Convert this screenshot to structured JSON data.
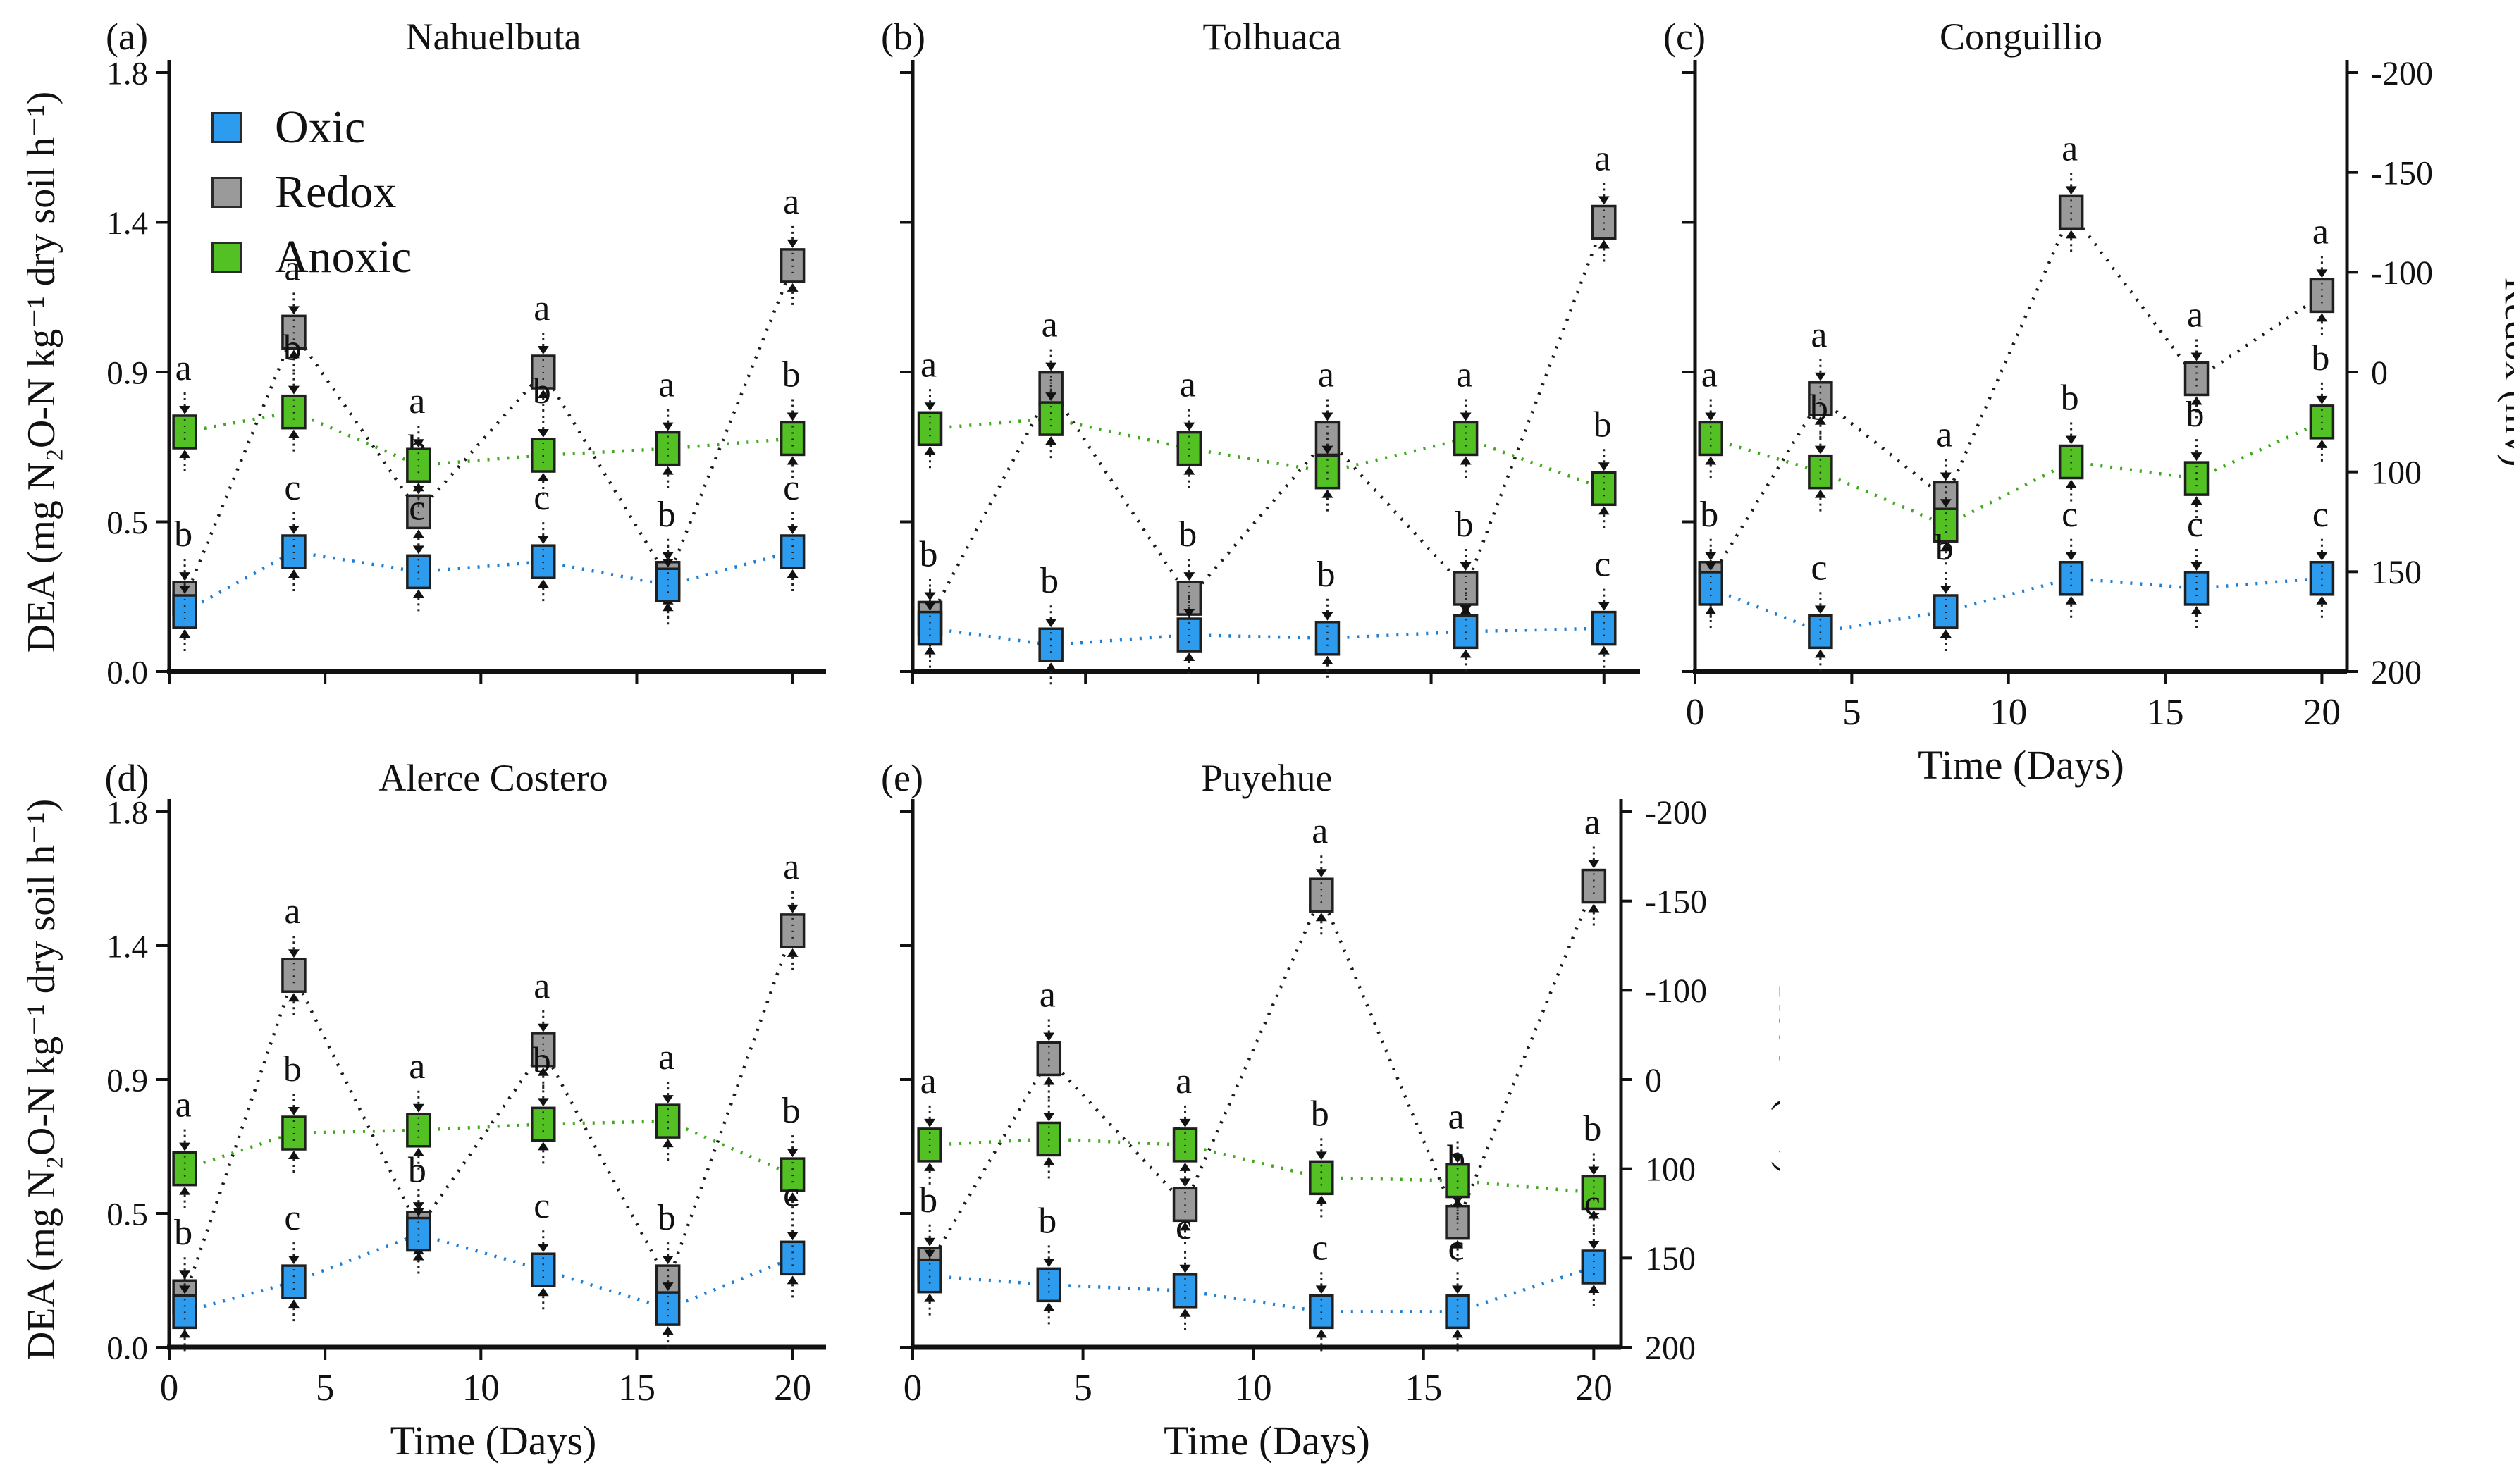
{
  "figure": {
    "background": "#ffffff"
  },
  "colors": {
    "oxic_fill": "#2D9CEE",
    "oxic_line": "#1C7FD6",
    "redox_fill": "#9A9A9A",
    "redox_line": "#1B1B1B",
    "anoxic_fill": "#53C123",
    "anoxic_line": "#3FA81C",
    "axis": "#111111",
    "text": "#111111",
    "box_border": "#1F1F1F"
  },
  "legend": {
    "items": [
      {
        "label": "Oxic",
        "color_key": "oxic_fill"
      },
      {
        "label": "Redox",
        "color_key": "redox_fill"
      },
      {
        "label": "Anoxic",
        "color_key": "anoxic_fill"
      }
    ]
  },
  "chart_data": {
    "type": "scatter",
    "x": [
      0.5,
      4,
      8,
      12,
      16,
      20
    ],
    "x_ticks": [
      "0",
      "5",
      "10",
      "15",
      "20"
    ],
    "x_tick_values": [
      0,
      5,
      10,
      15,
      20
    ],
    "xlabel": "Time (Days)",
    "dea_axis": {
      "label": "DEA (mg N₂O-N kg⁻¹ dry soil h⁻¹)",
      "tick_labels": [
        "1.8",
        "1.4",
        "0.9",
        "0.5",
        "0.0"
      ],
      "tick_values": [
        1.8,
        1.35,
        0.9,
        0.45,
        0
      ],
      "range": [
        0,
        1.8
      ]
    },
    "redox_axis": {
      "label": "Redox (mv)",
      "tick_labels": [
        "-200",
        "-150",
        "-100",
        "0",
        "100",
        "150",
        "200"
      ]
    },
    "series_names": [
      "Oxic",
      "Redox",
      "Anoxic"
    ],
    "panels": [
      {
        "id": "(a)",
        "title": "Nahuelbuta",
        "legend": true,
        "left_labels": true,
        "x_labels": false,
        "x_axis_title": false,
        "right_axis": false,
        "series": [
          {
            "name": "Redox",
            "values": [
              0.22,
              1.02,
              0.48,
              0.9,
              0.28,
              1.22
            ],
            "letters": [
              "b",
              "a",
              "b",
              "a",
              "b",
              "a"
            ]
          },
          {
            "name": "Anoxic",
            "values": [
              0.72,
              0.78,
              0.62,
              0.65,
              0.67,
              0.7
            ],
            "letters": [
              "a",
              "b",
              "a",
              "b",
              "a",
              "b"
            ]
          },
          {
            "name": "Oxic",
            "values": [
              0.18,
              0.36,
              0.3,
              0.33,
              0.26,
              0.36
            ],
            "letters": [
              "",
              "c",
              "c",
              "c",
              "",
              "c"
            ]
          }
        ]
      },
      {
        "id": "(b)",
        "title": "Tolhuaca",
        "legend": false,
        "left_labels": false,
        "x_labels": false,
        "x_axis_title": false,
        "right_axis": false,
        "series": [
          {
            "name": "Redox",
            "values": [
              0.16,
              0.85,
              0.22,
              0.7,
              0.25,
              1.35
            ],
            "letters": [
              "b",
              "a",
              "b",
              "a",
              "b",
              "a"
            ]
          },
          {
            "name": "Anoxic",
            "values": [
              0.73,
              0.76,
              0.67,
              0.6,
              0.7,
              0.55
            ],
            "letters": [
              "a",
              "",
              "a",
              "",
              "a",
              "b"
            ]
          },
          {
            "name": "Oxic",
            "values": [
              0.13,
              0.08,
              0.11,
              0.1,
              0.12,
              0.13
            ],
            "letters": [
              "",
              "b",
              "",
              "b",
              "",
              "c"
            ]
          }
        ]
      },
      {
        "id": "(c)",
        "title": "Conguillio",
        "legend": false,
        "left_labels": false,
        "x_labels": true,
        "x_axis_title": true,
        "right_axis": true,
        "series": [
          {
            "name": "Redox",
            "values": [
              0.28,
              0.82,
              0.52,
              1.38,
              0.88,
              1.13
            ],
            "letters": [
              "b",
              "a",
              "a",
              "a",
              "a",
              "a"
            ]
          },
          {
            "name": "Anoxic",
            "values": [
              0.7,
              0.6,
              0.44,
              0.63,
              0.58,
              0.75
            ],
            "letters": [
              "a",
              "b",
              "",
              "b",
              "b",
              "b"
            ]
          },
          {
            "name": "Oxic",
            "values": [
              0.25,
              0.12,
              0.18,
              0.28,
              0.25,
              0.28
            ],
            "letters": [
              "",
              "c",
              "b",
              "c",
              "c",
              "c"
            ]
          }
        ]
      },
      {
        "id": "(d)",
        "title": "Alerce Costero",
        "legend": false,
        "left_labels": true,
        "x_labels": true,
        "x_axis_title": true,
        "right_axis": false,
        "series": [
          {
            "name": "Redox",
            "values": [
              0.17,
              1.25,
              0.4,
              1.0,
              0.22,
              1.4
            ],
            "letters": [
              "b",
              "a",
              "",
              "a",
              "b",
              "a"
            ]
          },
          {
            "name": "Anoxic",
            "values": [
              0.6,
              0.72,
              0.73,
              0.75,
              0.76,
              0.58
            ],
            "letters": [
              "a",
              "b",
              "a",
              "b",
              "a",
              "b"
            ]
          },
          {
            "name": "Oxic",
            "values": [
              0.12,
              0.22,
              0.38,
              0.26,
              0.13,
              0.3
            ],
            "letters": [
              "",
              "c",
              "b",
              "c",
              "",
              "c"
            ]
          }
        ]
      },
      {
        "id": "(e)",
        "title": "Puyehue",
        "legend": false,
        "left_labels": false,
        "x_labels": true,
        "x_axis_title": true,
        "right_axis": true,
        "series": [
          {
            "name": "Redox",
            "values": [
              0.28,
              0.97,
              0.48,
              1.52,
              0.42,
              1.55
            ],
            "letters": [
              "b",
              "a",
              "b",
              "a",
              "b",
              "a"
            ]
          },
          {
            "name": "Anoxic",
            "values": [
              0.68,
              0.7,
              0.68,
              0.57,
              0.56,
              0.52
            ],
            "letters": [
              "a",
              "",
              "a",
              "b",
              "a",
              "b"
            ]
          },
          {
            "name": "Oxic",
            "values": [
              0.24,
              0.21,
              0.19,
              0.12,
              0.12,
              0.27
            ],
            "letters": [
              "",
              "b",
              "c",
              "c",
              "c",
              "c"
            ]
          }
        ]
      }
    ]
  }
}
